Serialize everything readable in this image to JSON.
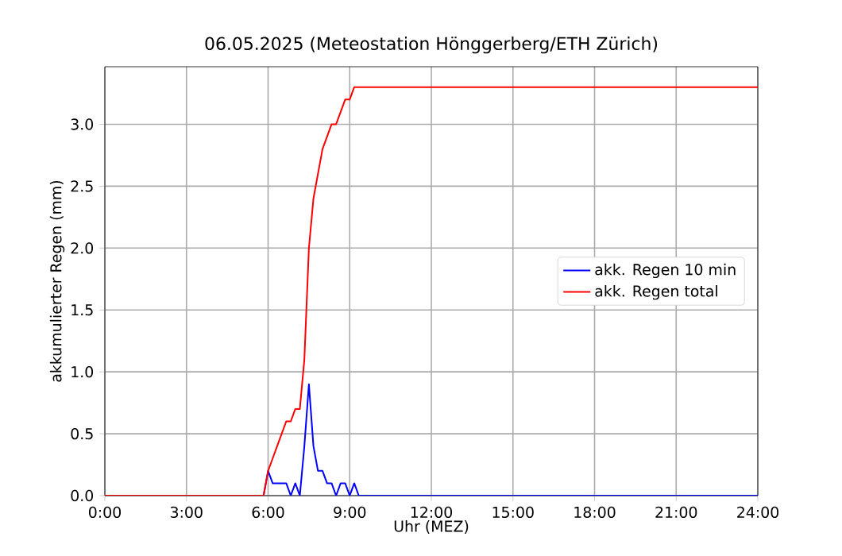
{
  "chart_data": {
    "type": "line",
    "title": "06.05.2025  (Meteostation Hönggerberg/ETH Zürich)",
    "xlabel": "Uhr (MEZ)",
    "ylabel": "akkumulierter Regen (mm)",
    "xlim": [
      0,
      24
    ],
    "ylim": [
      0,
      3.465
    ],
    "xticks": [
      {
        "value": 0,
        "label": "0:00"
      },
      {
        "value": 3,
        "label": "3:00"
      },
      {
        "value": 6,
        "label": "6:00"
      },
      {
        "value": 9,
        "label": "9:00"
      },
      {
        "value": 12,
        "label": "12:00"
      },
      {
        "value": 15,
        "label": "15:00"
      },
      {
        "value": 18,
        "label": "18:00"
      },
      {
        "value": 21,
        "label": "21:00"
      },
      {
        "value": 24,
        "label": "24:00"
      }
    ],
    "yticks": [
      {
        "value": 0,
        "label": "0.0"
      },
      {
        "value": 0.5,
        "label": "0.5"
      },
      {
        "value": 1,
        "label": "1.0"
      },
      {
        "value": 1.5,
        "label": "1.5"
      },
      {
        "value": 2,
        "label": "2.0"
      },
      {
        "value": 2.5,
        "label": "2.5"
      },
      {
        "value": 3,
        "label": "3.0"
      }
    ],
    "grid": true,
    "legend": "right",
    "marker": "none",
    "line_style": "solid",
    "series": [
      {
        "name": "akk. Regen 10 min",
        "color": "#0000ff",
        "x": [
          0,
          5.8333,
          6,
          6.1667,
          6.3333,
          6.5,
          6.6667,
          6.8333,
          7,
          7.1667,
          7.3333,
          7.5,
          7.6667,
          7.8333,
          8,
          8.1667,
          8.3333,
          8.5,
          8.6667,
          8.8333,
          9,
          9.1667,
          9.3333,
          24
        ],
        "values": [
          0,
          0,
          0.2,
          0.1,
          0.1,
          0.1,
          0.1,
          0,
          0.1,
          0,
          0.4,
          0.9,
          0.4,
          0.2,
          0.2,
          0.1,
          0.1,
          0,
          0.1,
          0.1,
          0,
          0.1,
          0,
          0
        ]
      },
      {
        "name": "akk. Regen total",
        "color": "#ff0000",
        "x": [
          0,
          5.8333,
          6,
          6.1667,
          6.3333,
          6.5,
          6.6667,
          6.8333,
          7,
          7.1667,
          7.3333,
          7.5,
          7.6667,
          7.8333,
          8,
          8.1667,
          8.3333,
          8.5,
          8.6667,
          8.8333,
          9,
          9.1667,
          9.3333,
          24
        ],
        "values": [
          0,
          0,
          0.2,
          0.3,
          0.4,
          0.5,
          0.6,
          0.6,
          0.7,
          0.7,
          1.1,
          2.0,
          2.4,
          2.6,
          2.8,
          2.9,
          3.0,
          3.0,
          3.1,
          3.2,
          3.2,
          3.3,
          3.3,
          3.3
        ]
      }
    ]
  }
}
